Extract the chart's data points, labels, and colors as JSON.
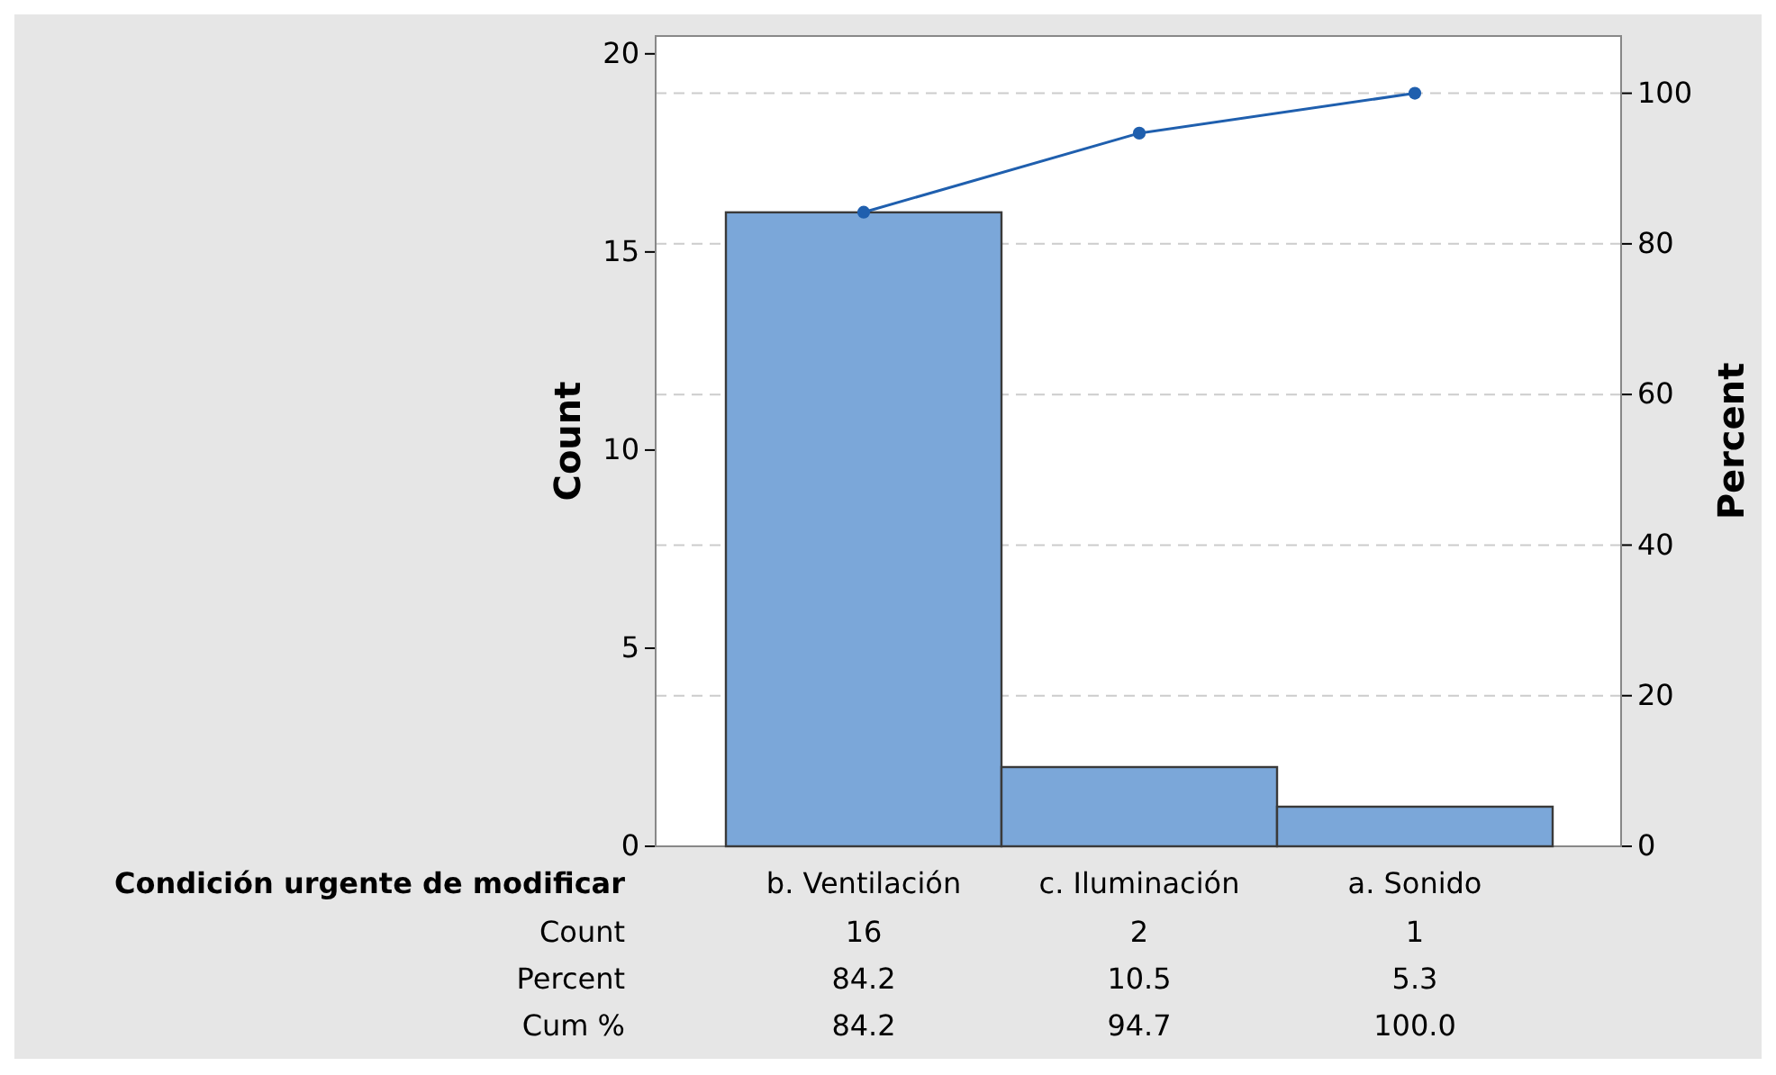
{
  "chart_data": {
    "type": "bar",
    "xlabel": "Condición urgente de modificar",
    "ylabel": "Count",
    "y2label": "Percent",
    "categories": [
      "b. Ventilación",
      "c. Iluminación",
      "a. Sonido"
    ],
    "series": [
      {
        "color": "#7ba7d9",
        "values": [
          16,
          2,
          1
        ],
        "value_labels": [
          "16",
          "2",
          "1"
        ]
      },
      {
        "type": "line",
        "axis": "y2",
        "color": "#1f5fae",
        "values": [
          84.2,
          94.7,
          100.0
        ],
        "value_labels": [
          "84.2",
          "94.7",
          "100.0"
        ]
      }
    ],
    "annotations": [
      "Count",
      "Percent",
      "Cum %",
      "84.2",
      "10.5",
      "5.3"
    ],
    "ylim": [
      0,
      20.45
    ],
    "yticks": [
      0,
      5,
      10,
      15,
      20
    ],
    "y2lim": [
      0,
      107.6
    ],
    "y2ticks": [
      0,
      20,
      40,
      60,
      80,
      100
    ],
    "grid": true,
    "marker": "circle",
    "line_style": "solid"
  }
}
